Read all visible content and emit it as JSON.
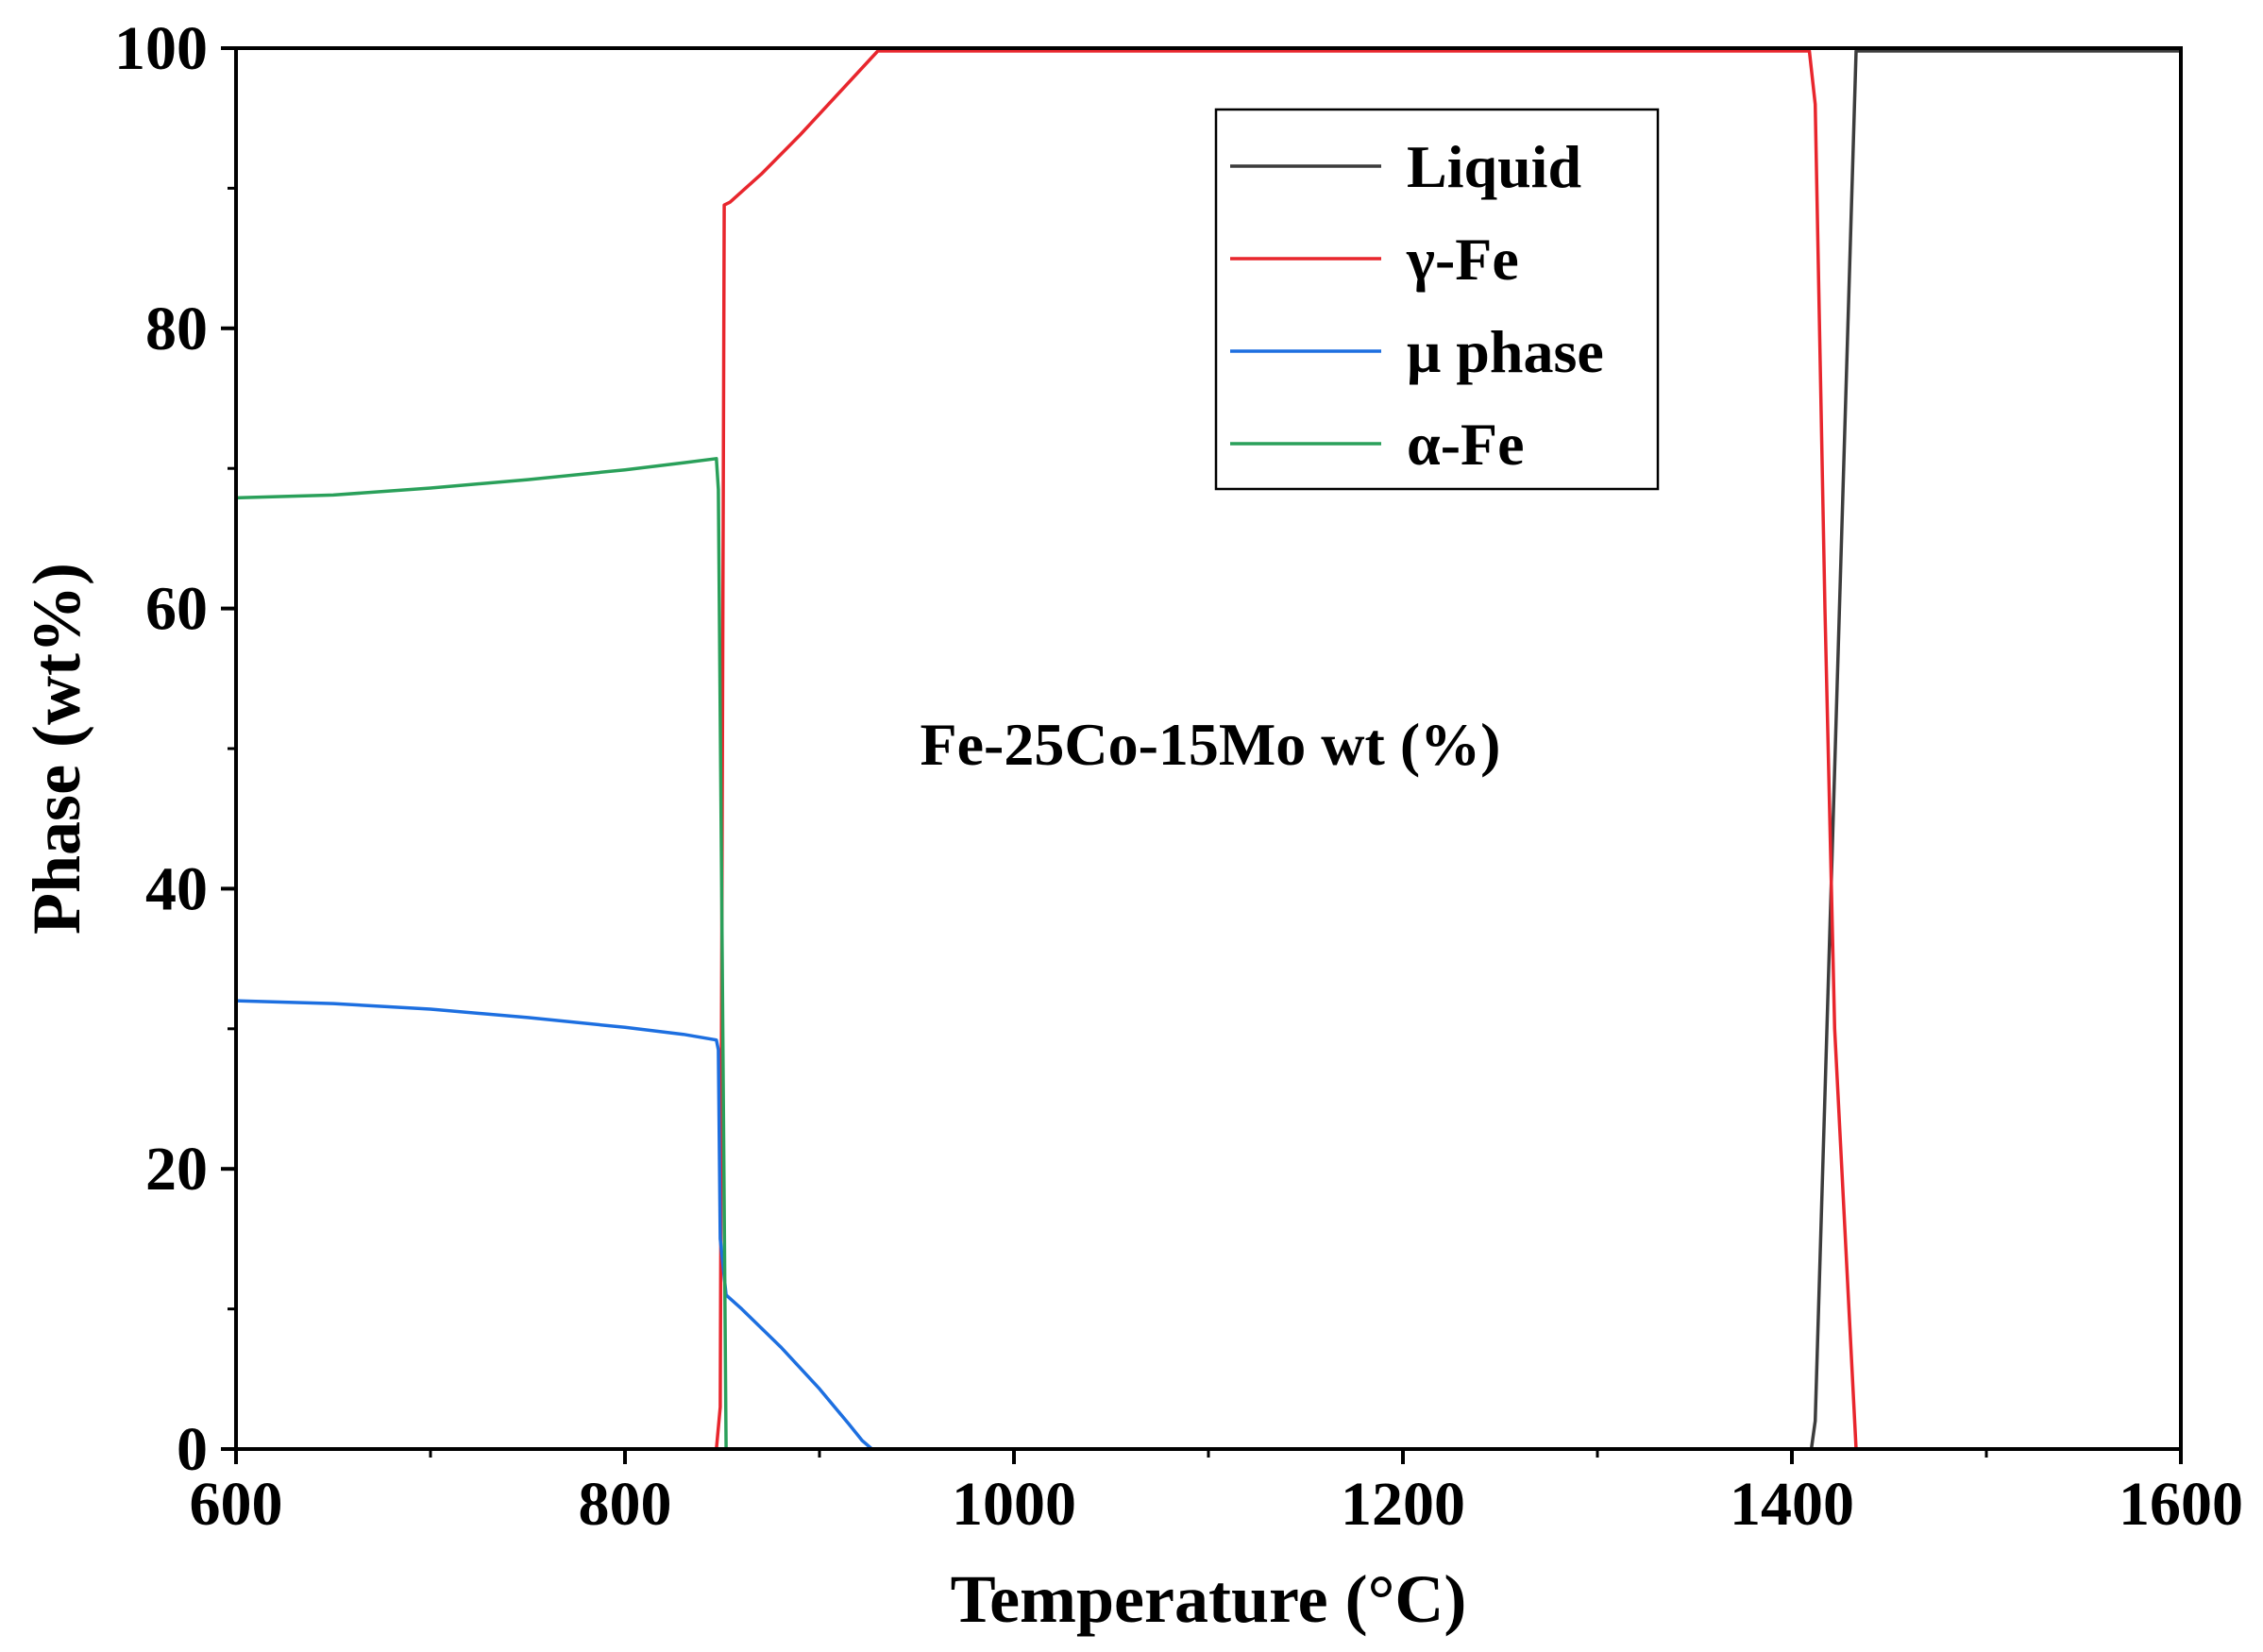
{
  "chart_data": {
    "type": "line",
    "title": "",
    "annotation": "Fe-25Co-15Mo wt (%)",
    "xlabel": "Temperature (°C)",
    "ylabel": "Phase (wt%)",
    "xlim": [
      600,
      1600
    ],
    "ylim": [
      0,
      100
    ],
    "x_ticks": [
      600,
      800,
      1000,
      1200,
      1400,
      1600
    ],
    "y_ticks": [
      0,
      20,
      40,
      60,
      80,
      100
    ],
    "x_minor_step": 100,
    "y_minor_step": 10,
    "grid": false,
    "legend_position": "top-right",
    "series": [
      {
        "name": "Liquid",
        "color": "#3c3c3c",
        "points": [
          [
            1410,
            0
          ],
          [
            1412,
            2
          ],
          [
            1433,
            99.8
          ],
          [
            1600,
            99.8
          ]
        ]
      },
      {
        "name": "γ-Fe",
        "color": "#e8262d",
        "points": [
          [
            847,
            0
          ],
          [
            849,
            3
          ],
          [
            851,
            88.8
          ],
          [
            854,
            89
          ],
          [
            870,
            91
          ],
          [
            890,
            93.8
          ],
          [
            910,
            96.8
          ],
          [
            930,
            99.8
          ],
          [
            1409,
            99.8
          ],
          [
            1412,
            96
          ],
          [
            1417,
            60
          ],
          [
            1422,
            30
          ],
          [
            1433,
            0
          ]
        ]
      },
      {
        "name": "μ phase",
        "color": "#1d6fe0",
        "points": [
          [
            600,
            32
          ],
          [
            650,
            31.8
          ],
          [
            700,
            31.4
          ],
          [
            750,
            30.8
          ],
          [
            800,
            30.1
          ],
          [
            830,
            29.6
          ],
          [
            847,
            29.2
          ],
          [
            848,
            28.5
          ],
          [
            849,
            15
          ],
          [
            852,
            11
          ],
          [
            860,
            10
          ],
          [
            880,
            7.3
          ],
          [
            900,
            4.3
          ],
          [
            915,
            1.8
          ],
          [
            922,
            0.6
          ],
          [
            927,
            0
          ]
        ]
      },
      {
        "name": "α-Fe",
        "color": "#2aa05a",
        "points": [
          [
            600,
            67.9
          ],
          [
            650,
            68.1
          ],
          [
            700,
            68.6
          ],
          [
            750,
            69.2
          ],
          [
            800,
            69.9
          ],
          [
            830,
            70.4
          ],
          [
            847,
            70.7
          ],
          [
            848,
            68.5
          ],
          [
            850,
            35
          ],
          [
            852,
            0
          ]
        ]
      }
    ]
  }
}
